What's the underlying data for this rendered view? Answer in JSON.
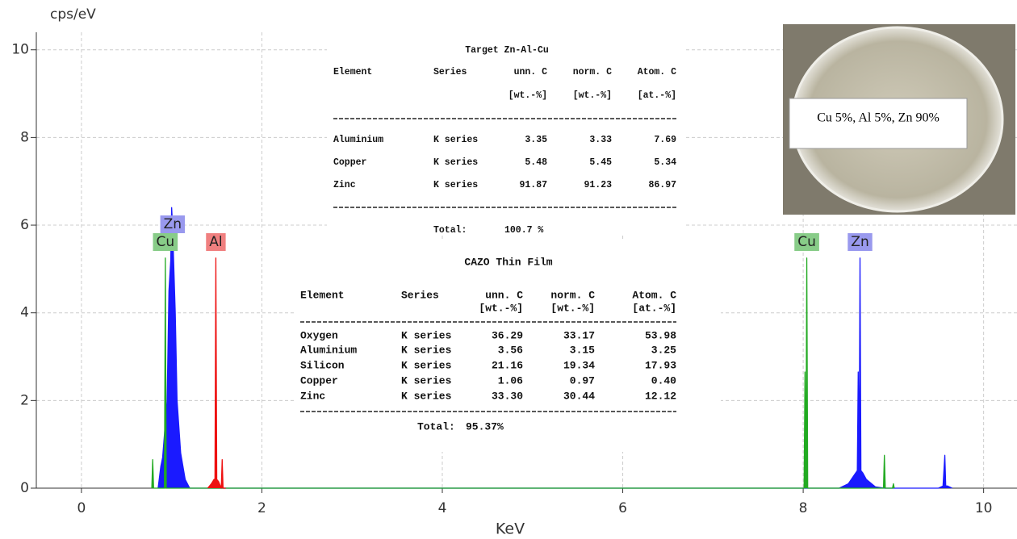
{
  "chart_data": {
    "type": "area",
    "xlabel": "KeV",
    "ylabel": "cps/eV",
    "xlim": [
      -0.5,
      10.37
    ],
    "ylim": [
      0,
      10.4
    ],
    "xticks": [
      0,
      2,
      4,
      6,
      8,
      10
    ],
    "yticks": [
      0,
      2,
      4,
      6,
      8,
      10
    ],
    "grid": true,
    "series": [
      {
        "color": "#1a1aff",
        "x": [
          0.85,
          0.88,
          0.9,
          0.95,
          0.97,
          0.99,
          1.0,
          1.01,
          1.02,
          1.04,
          1.06,
          1.1,
          1.15,
          1.2,
          8.4,
          8.5,
          8.55,
          8.6,
          8.61,
          8.62,
          8.63,
          8.64,
          8.66,
          8.7,
          8.8,
          8.9,
          9.5,
          9.55,
          9.57,
          9.58,
          9.6,
          9.65
        ],
        "values": [
          0,
          0.5,
          0.7,
          2,
          4.5,
          5.2,
          6.4,
          6.0,
          5.3,
          4,
          2,
          0.8,
          0.2,
          0,
          0,
          0.1,
          0.25,
          0.4,
          2.65,
          0.4,
          5.25,
          0.4,
          0.35,
          0.2,
          0.03,
          0,
          0,
          0.05,
          0.75,
          0.05,
          0.05,
          0
        ]
      },
      {
        "color": "#22aa22",
        "x": [
          0.78,
          0.79,
          0.8,
          0.92,
          0.93,
          0.94,
          8.01,
          8.02,
          8.03,
          8.04,
          8.05,
          8.89,
          8.9,
          8.91,
          8.99,
          9.0,
          9.01
        ],
        "values": [
          0,
          0.65,
          0,
          0,
          5.25,
          0,
          0,
          2.65,
          0,
          5.25,
          0,
          0,
          0.75,
          0,
          0,
          0.1,
          0
        ]
      },
      {
        "color": "#ee1111",
        "x": [
          1.4,
          1.44,
          1.47,
          1.48,
          1.49,
          1.5,
          1.52,
          1.55,
          1.56,
          1.57,
          1.6
        ],
        "values": [
          0,
          0.1,
          0.2,
          0.2,
          5.25,
          0.2,
          0.15,
          0,
          0.65,
          0,
          0
        ]
      }
    ],
    "annotations": [
      {
        "text": "Cu",
        "x": 0.93,
        "color": "#88cc88"
      },
      {
        "text": "Zn",
        "x": 1.01,
        "color": "#9999ee"
      },
      {
        "text": "Al",
        "x": 1.49,
        "color": "#f08080"
      },
      {
        "text": "Cu",
        "x": 8.04,
        "color": "#88cc88"
      },
      {
        "text": "Zn",
        "x": 8.63,
        "color": "#9999ee"
      }
    ]
  },
  "tables": [
    {
      "title": "Target Zn-Al-Cu",
      "columns": [
        "Element",
        "Series",
        "unn. C",
        "norm. C",
        "Atom. C"
      ],
      "units": [
        "[wt.-%]",
        "[wt.-%]",
        "[at.-%]"
      ],
      "rows": [
        [
          "Aluminium",
          "K series",
          "3.35",
          "3.33",
          "7.69"
        ],
        [
          "Copper",
          "K series",
          "5.48",
          "5.45",
          "5.34"
        ],
        [
          "Zinc",
          "K series",
          "91.87",
          "91.23",
          "86.97"
        ]
      ],
      "total_label": "Total:",
      "total": "100.7 %"
    },
    {
      "title": "CAZO Thin Film",
      "columns": [
        "Element",
        "Series",
        "unn. C",
        "norm. C",
        "Atom. C"
      ],
      "units": [
        "[wt.-%]",
        "[wt.-%]",
        "[at.-%]"
      ],
      "rows": [
        [
          "Oxygen",
          "K series",
          "36.29",
          "33.17",
          "53.98"
        ],
        [
          "Aluminium",
          "K series",
          "3.56",
          "3.15",
          "3.25"
        ],
        [
          "Silicon",
          "K series",
          "21.16",
          "19.34",
          "17.93"
        ],
        [
          "Copper",
          "K series",
          "1.06",
          "0.97",
          "0.40"
        ],
        [
          "Zinc",
          "K series",
          "33.30",
          "30.44",
          "12.12"
        ]
      ],
      "total_label": "Total:",
      "total": "95.37%"
    }
  ],
  "inset": {
    "caption": "Cu 5%, Al 5%, Zn 90%"
  }
}
